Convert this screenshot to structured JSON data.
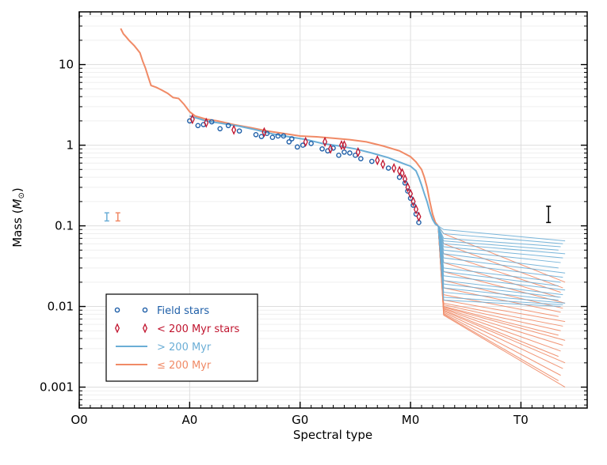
{
  "chart_data": {
    "type": "line",
    "xlabel": "Spectral type",
    "ylabel": "Mass (M⊙)",
    "ylabel_main": "Mass (",
    "ylabel_symbol": "M",
    "ylabel_sub": "⊙",
    "ylabel_close": ")",
    "x_ticks": [
      {
        "label": "O0",
        "value": 0
      },
      {
        "label": "A0",
        "value": 20
      },
      {
        "label": "G0",
        "value": 40
      },
      {
        "label": "M0",
        "value": 60
      },
      {
        "label": "T0",
        "value": 80
      }
    ],
    "xlim": [
      0,
      92
    ],
    "ylim": [
      0.00055,
      45
    ],
    "y_ticks": [
      {
        "label": "0.001",
        "value": 0.001
      },
      {
        "label": "0.01",
        "value": 0.01
      },
      {
        "label": "0.1",
        "value": 0.1
      },
      {
        "label": "1",
        "value": 1
      },
      {
        "label": "10",
        "value": 10
      }
    ],
    "colors": {
      "field": "#1f5fa8",
      "young": "#c0152f",
      "old_line": "#6baed6",
      "young_line": "#f08a66"
    },
    "legend": [
      {
        "label": "Field stars",
        "marker": "circle",
        "color": "#1f5fa8"
      },
      {
        "label": "< 200 Myr stars",
        "marker": "diamond",
        "color": "#c0152f"
      },
      {
        "label": "> 200 Myr",
        "marker": "line",
        "color": "#6baed6"
      },
      {
        "label": "≤ 200 Myr",
        "marker": "line",
        "color": "#f08a66"
      }
    ],
    "series": [
      {
        "name": "≤ 200 Myr main track",
        "color": "#f08a66",
        "points": [
          [
            7.5,
            28
          ],
          [
            8,
            24
          ],
          [
            8.5,
            22
          ],
          [
            9,
            20
          ],
          [
            10,
            17
          ],
          [
            11,
            14
          ],
          [
            11.5,
            11
          ],
          [
            12,
            9
          ],
          [
            12.5,
            7
          ],
          [
            13,
            5.5
          ],
          [
            14,
            5.2
          ],
          [
            15,
            4.8
          ],
          [
            16,
            4.4
          ],
          [
            17,
            3.9
          ],
          [
            18,
            3.8
          ],
          [
            19,
            3.2
          ],
          [
            20,
            2.6
          ],
          [
            21,
            2.3
          ],
          [
            23,
            2.1
          ],
          [
            25,
            2.0
          ],
          [
            28,
            1.8
          ],
          [
            31,
            1.65
          ],
          [
            34,
            1.5
          ],
          [
            37,
            1.4
          ],
          [
            40,
            1.3
          ],
          [
            43,
            1.27
          ],
          [
            46,
            1.22
          ],
          [
            49,
            1.17
          ],
          [
            52,
            1.1
          ],
          [
            55,
            0.98
          ],
          [
            58,
            0.85
          ],
          [
            60,
            0.72
          ],
          [
            61,
            0.62
          ],
          [
            62,
            0.5
          ],
          [
            62.5,
            0.4
          ],
          [
            63,
            0.3
          ],
          [
            63.5,
            0.2
          ],
          [
            64,
            0.14
          ],
          [
            64.5,
            0.11
          ],
          [
            65,
            0.1
          ]
        ]
      },
      {
        "name": "> 200 Myr main track",
        "color": "#6baed6",
        "points": [
          [
            20,
            2.3
          ],
          [
            23,
            2.0
          ],
          [
            26,
            1.85
          ],
          [
            29,
            1.72
          ],
          [
            32,
            1.55
          ],
          [
            35,
            1.38
          ],
          [
            38,
            1.27
          ],
          [
            41,
            1.18
          ],
          [
            44,
            1.05
          ],
          [
            47,
            0.98
          ],
          [
            50,
            0.9
          ],
          [
            53,
            0.8
          ],
          [
            56,
            0.7
          ],
          [
            59,
            0.58
          ],
          [
            60,
            0.55
          ],
          [
            61,
            0.48
          ],
          [
            61.5,
            0.4
          ],
          [
            62,
            0.32
          ],
          [
            62.5,
            0.25
          ],
          [
            63,
            0.2
          ],
          [
            63.5,
            0.15
          ],
          [
            64,
            0.12
          ],
          [
            64.5,
            0.105
          ],
          [
            65,
            0.1
          ]
        ]
      }
    ],
    "brown_dwarf_tracks": {
      "x_start": 66,
      "x_end": 88,
      "old_start_masses": [
        0.09,
        0.08,
        0.07,
        0.065,
        0.06,
        0.055,
        0.05,
        0.045,
        0.04,
        0.035,
        0.03,
        0.027,
        0.024,
        0.021,
        0.019,
        0.017,
        0.015,
        0.013,
        0.012
      ],
      "old_end_masses": [
        0.065,
        0.06,
        0.055,
        0.05,
        0.045,
        0.04,
        0.035,
        0.03,
        0.026,
        0.023,
        0.02,
        0.018,
        0.016,
        0.014,
        0.013,
        0.012,
        0.011,
        0.0105,
        0.01
      ],
      "young_start_masses": [
        0.08,
        0.06,
        0.045,
        0.035,
        0.027,
        0.021,
        0.017,
        0.014,
        0.012,
        0.011,
        0.0105,
        0.01,
        0.0098,
        0.0095,
        0.0093,
        0.009,
        0.0088,
        0.0085,
        0.0082,
        0.008,
        0.0078
      ],
      "young_end_masses": [
        0.02,
        0.017,
        0.015,
        0.013,
        0.011,
        0.0095,
        0.0085,
        0.0075,
        0.0065,
        0.0057,
        0.005,
        0.0044,
        0.0038,
        0.0033,
        0.0028,
        0.0024,
        0.002,
        0.0017,
        0.0014,
        0.0012,
        0.001
      ]
    },
    "field_stars": [
      [
        20,
        2.0
      ],
      [
        21.5,
        1.75
      ],
      [
        22.5,
        1.8
      ],
      [
        24,
        1.95
      ],
      [
        25.5,
        1.6
      ],
      [
        27,
        1.75
      ],
      [
        29,
        1.5
      ],
      [
        32,
        1.35
      ],
      [
        33,
        1.28
      ],
      [
        34,
        1.4
      ],
      [
        35,
        1.25
      ],
      [
        36,
        1.3
      ],
      [
        37,
        1.3
      ],
      [
        38,
        1.1
      ],
      [
        38.5,
        1.2
      ],
      [
        39.5,
        0.95
      ],
      [
        40.5,
        1.0
      ],
      [
        42,
        1.05
      ],
      [
        44,
        0.9
      ],
      [
        45,
        0.85
      ],
      [
        46,
        0.92
      ],
      [
        47,
        0.75
      ],
      [
        48,
        0.82
      ],
      [
        49,
        0.8
      ],
      [
        50,
        0.75
      ],
      [
        51,
        0.68
      ],
      [
        53,
        0.63
      ],
      [
        56,
        0.52
      ],
      [
        58,
        0.4
      ],
      [
        59,
        0.34
      ],
      [
        59.5,
        0.27
      ],
      [
        60,
        0.22
      ],
      [
        60.5,
        0.18
      ],
      [
        61,
        0.14
      ],
      [
        61.5,
        0.11
      ]
    ],
    "young_stars": [
      [
        20.5,
        2.1
      ],
      [
        23,
        1.9
      ],
      [
        28,
        1.55
      ],
      [
        33.5,
        1.45
      ],
      [
        41,
        1.1
      ],
      [
        44.5,
        1.1
      ],
      [
        45.5,
        0.9
      ],
      [
        47.5,
        1.0
      ],
      [
        48,
        1.0
      ],
      [
        50.5,
        0.82
      ],
      [
        54,
        0.65
      ],
      [
        55,
        0.58
      ],
      [
        57,
        0.52
      ],
      [
        58,
        0.48
      ],
      [
        58.5,
        0.45
      ],
      [
        59,
        0.38
      ],
      [
        59.5,
        0.3
      ],
      [
        60,
        0.25
      ],
      [
        60.5,
        0.2
      ],
      [
        61,
        0.16
      ],
      [
        61.5,
        0.13
      ]
    ],
    "error_bars": [
      {
        "x": 5,
        "y": 0.13,
        "lo": 0.115,
        "hi": 0.145,
        "color": "#6baed6"
      },
      {
        "x": 7,
        "y": 0.13,
        "lo": 0.115,
        "hi": 0.145,
        "color": "#f08a66"
      },
      {
        "x": 85,
        "y": 0.14,
        "lo": 0.11,
        "hi": 0.175,
        "color": "#000000"
      }
    ]
  }
}
